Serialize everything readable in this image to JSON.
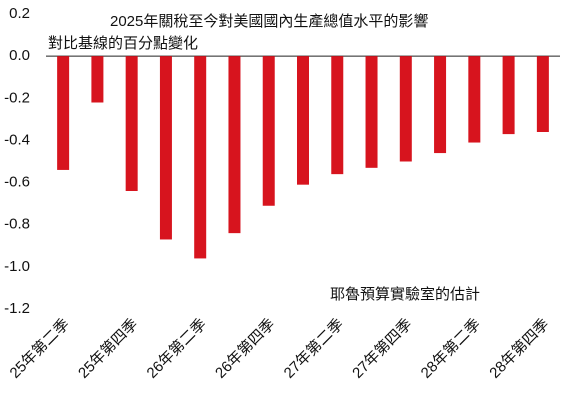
{
  "chart_data": {
    "type": "bar",
    "title": "2025年關稅至今對美國國內生產總值水平的影響",
    "subtitle": "對比基線的百分點變化",
    "annotation": "耶魯預算實驗室的估計",
    "categories": [
      "25年第二季",
      null,
      "25年第四季",
      null,
      "26年第二季",
      null,
      "26年第四季",
      null,
      "27年第二季",
      null,
      "27年第四季",
      null,
      "28年第二季",
      null,
      "28年第四季"
    ],
    "values": [
      -0.54,
      -0.22,
      -0.64,
      -0.87,
      -0.96,
      -0.84,
      -0.71,
      -0.61,
      -0.56,
      -0.53,
      -0.5,
      -0.46,
      -0.41,
      -0.37,
      -0.36
    ],
    "color": "#d7141e",
    "ylim": [
      -1.2,
      0.2
    ],
    "yticks": [
      0.2,
      {
        "value": 0,
        "label": "0.0"
      },
      -0.2,
      -0.4,
      -0.6,
      -0.8,
      {
        "value": -1,
        "label": "-1.0"
      },
      -1.2
    ],
    "grid": false
  }
}
